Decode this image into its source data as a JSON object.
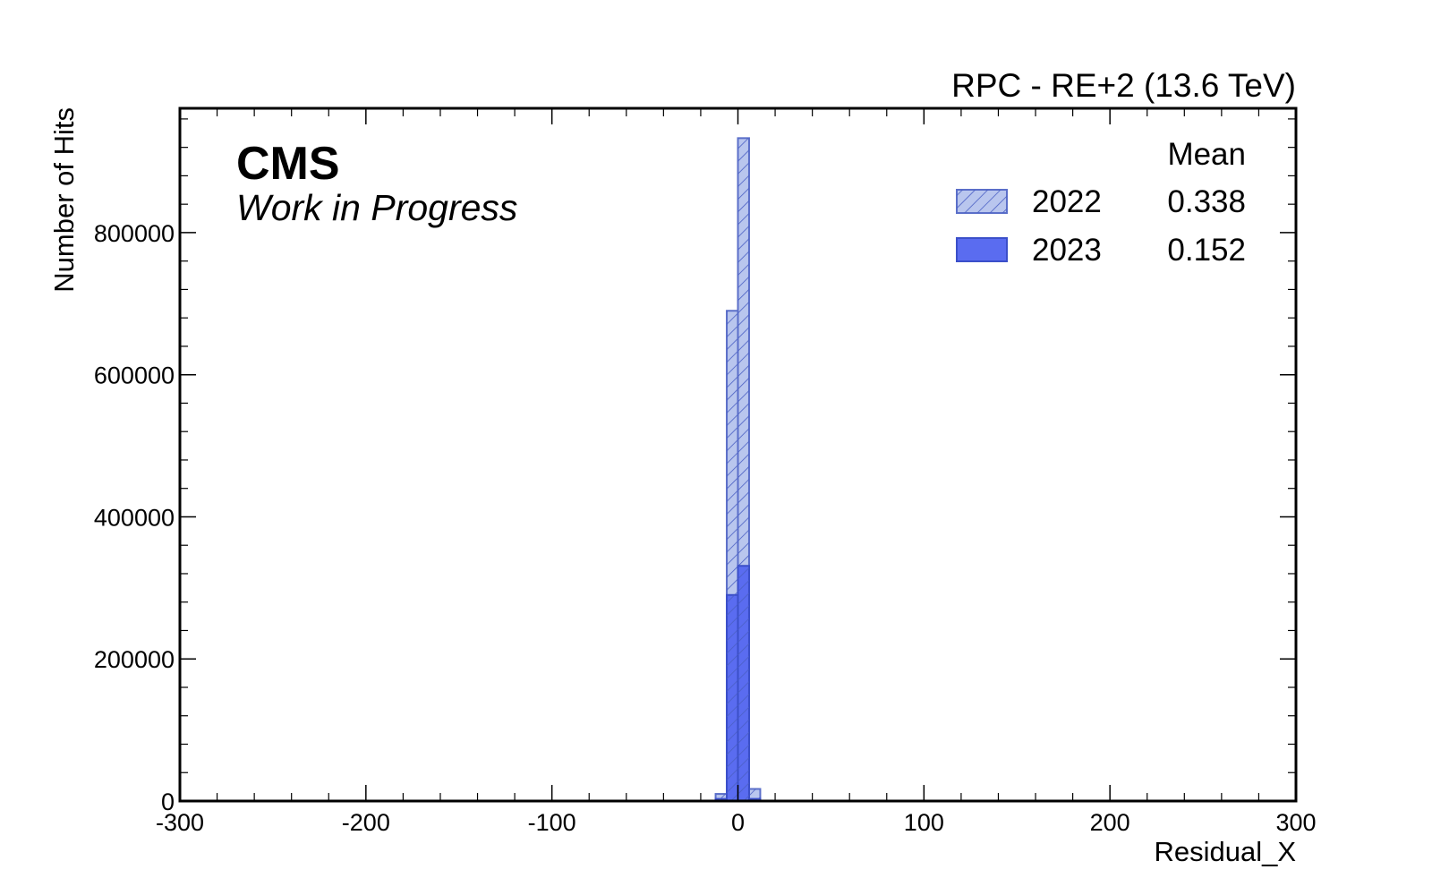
{
  "chart_data": {
    "type": "bar",
    "header_right": "RPC - RE+2 (13.6 TeV)",
    "cms_label": "CMS",
    "cms_sublabel": "Work in Progress",
    "xlabel": "Residual_X",
    "ylabel": "Number of Hits",
    "xlim": [
      -300,
      300
    ],
    "ylim": [
      0,
      975000
    ],
    "x_ticks": [
      "-300",
      "-200",
      "-100",
      "0",
      "100",
      "200",
      "300"
    ],
    "x_tick_values": [
      -300,
      -200,
      -100,
      0,
      100,
      200,
      300
    ],
    "y_ticks": [
      "0",
      "200000",
      "400000",
      "600000",
      "800000"
    ],
    "y_tick_values": [
      0,
      200000,
      400000,
      600000,
      800000
    ],
    "legend_position": "top-right",
    "legend_header": "Mean",
    "bin_width": 6,
    "series": [
      {
        "name": "2022",
        "mean": "0.338",
        "style": "hatched",
        "color": "#b9c6ee",
        "edge": "#5b6fc9",
        "bins": [
          {
            "x0": -12,
            "value": 10000
          },
          {
            "x0": -6,
            "value": 690000
          },
          {
            "x0": 0,
            "value": 933000
          },
          {
            "x0": 6,
            "value": 17000
          }
        ]
      },
      {
        "name": "2023",
        "mean": "0.152",
        "style": "filled",
        "color": "#5a6cf0",
        "edge": "#3b4fc9",
        "bins": [
          {
            "x0": -12,
            "value": 3000
          },
          {
            "x0": -6,
            "value": 290000
          },
          {
            "x0": 0,
            "value": 331000
          },
          {
            "x0": 6,
            "value": 3000
          }
        ]
      }
    ]
  }
}
